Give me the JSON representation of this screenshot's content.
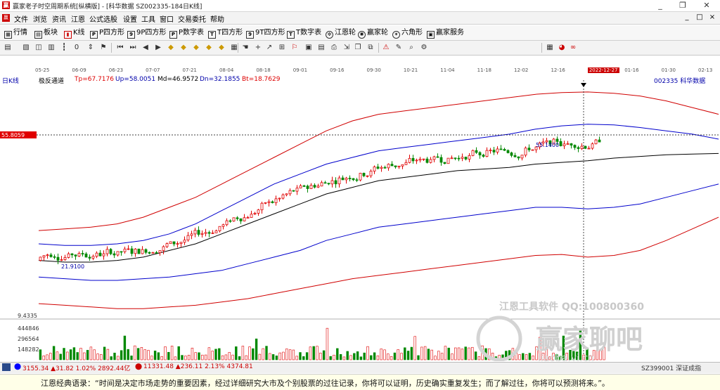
{
  "window": {
    "title": "赢家老子时空周期系统[纵横版] - [科华数据  SZ002335-184日K线]",
    "min_label": "_",
    "max_label": "❐",
    "close_label": "✕"
  },
  "menu": {
    "items": [
      "文件",
      "浏览",
      "资讯",
      "江恩",
      "公式选股",
      "设置",
      "工具",
      "窗口",
      "交易委托",
      "帮助"
    ],
    "right_items": [
      "_",
      "□",
      "×"
    ]
  },
  "toolbar1": {
    "items": [
      {
        "label": "行情",
        "icon": "grid-icon"
      },
      {
        "label": "板块",
        "icon": "blocks-icon"
      },
      {
        "label": "K线",
        "icon": "candle-icon"
      },
      {
        "label": "P四方形",
        "icon": "square-p-icon"
      },
      {
        "label": "9P四方形",
        "icon": "square-9p-icon"
      },
      {
        "label": "P数字表",
        "icon": "table-p-icon"
      },
      {
        "label": "T四方形",
        "icon": "square-t-icon"
      },
      {
        "label": "9T四方形",
        "icon": "square-9t-icon"
      },
      {
        "label": "T数字表",
        "icon": "table-t-icon"
      },
      {
        "label": "江恩轮",
        "icon": "wheel-icon"
      },
      {
        "label": "赢家轮",
        "icon": "winner-wheel-icon"
      },
      {
        "label": "六角形",
        "icon": "hexagon-icon"
      },
      {
        "label": "赢家服务",
        "icon": "service-icon"
      }
    ]
  },
  "date_axis": {
    "period": "日K线",
    "labels": [
      "05-25",
      "06-09",
      "06-23",
      "07-07",
      "07-21",
      "08-04",
      "08-18",
      "09-01",
      "09-16",
      "09-30",
      "10-21",
      "11-04",
      "11-18",
      "12-02",
      "12-16",
      "2022-12-27",
      "01-16",
      "01-30",
      "02-13"
    ]
  },
  "indicator": {
    "name": "极反通道",
    "tp": "Tp=67.7176",
    "up": "Up=58.0051",
    "md": "Md=46.9572",
    "dn": "Dn=32.1855",
    "bt": "Bt=18.7629",
    "stock": "002335  科华数据"
  },
  "price_labels": {
    "cursor_price": "55.8059",
    "high_label": "55.1400",
    "low_label": "21.9100",
    "vol_top": "9.4335",
    "vol_ticks": [
      "444846",
      "296564",
      "148282"
    ]
  },
  "watermark": {
    "line1": "江恩工具软件  QQ:100800360",
    "line2": "赢家聊吧",
    "line3": "liaoba.yj.cn"
  },
  "status": {
    "index1": "3155.34 ▲31.82 1.02% 2892.44亿",
    "index2": "11331.48 ▲236.11 2.13% 4374.81",
    "right": "SZ399001 深证成指"
  },
  "quote": {
    "text": "江恩经典语录：“时间是决定市场走势的重要因素，经过详细研究大市及个别股票的过往记录，你将可以证明，历史确实重复发生；而了解过往，你将可以预测将来。”。"
  },
  "colors": {
    "up_candle": "#e00000",
    "down_candle": "#008800",
    "channel_outer": "#d00000",
    "channel_inner": "#0000cc",
    "mid_line": "#000000"
  },
  "chart_data": {
    "type": "candlestick",
    "series": [
      {
        "name": "Tp",
        "values": [
          26,
          26.5,
          27,
          28,
          30,
          33,
          36,
          40,
          44,
          48,
          52,
          56,
          59,
          61,
          62,
          63,
          64,
          65,
          66,
          67,
          67.5,
          67.7,
          67.3,
          66.5,
          65,
          63,
          61
        ]
      },
      {
        "name": "Up",
        "values": [
          22,
          21.5,
          21.5,
          22,
          23,
          25,
          28,
          32,
          36,
          40,
          43,
          46,
          48,
          50,
          51,
          52,
          53,
          54,
          55,
          56.5,
          57.5,
          58,
          57.8,
          57,
          56,
          55,
          53.5
        ]
      },
      {
        "name": "Md",
        "values": [
          17,
          16.5,
          16.5,
          17,
          18,
          20,
          22,
          25,
          28,
          31,
          34,
          37,
          39,
          41,
          42,
          43,
          44,
          44.5,
          45,
          46,
          46.5,
          47,
          47.8,
          48.3,
          48.8,
          49,
          49.2
        ]
      },
      {
        "name": "Dn",
        "values": [
          12,
          11.5,
          11,
          11,
          11.5,
          12,
          13,
          14,
          16,
          18,
          20,
          23,
          25,
          27,
          28,
          29,
          30,
          31,
          32,
          33,
          33,
          32.5,
          33,
          34,
          36,
          38,
          40
        ]
      },
      {
        "name": "Bt",
        "values": [
          4,
          3.5,
          3,
          2.5,
          2.5,
          3,
          3.5,
          4.5,
          5.5,
          7,
          8.5,
          10,
          11.5,
          12.5,
          13.5,
          14.5,
          15.5,
          16.5,
          17.5,
          18.5,
          18.8,
          18,
          18.5,
          20,
          23,
          26.5,
          30
        ]
      }
    ],
    "ylim": [
      0,
      70
    ]
  }
}
